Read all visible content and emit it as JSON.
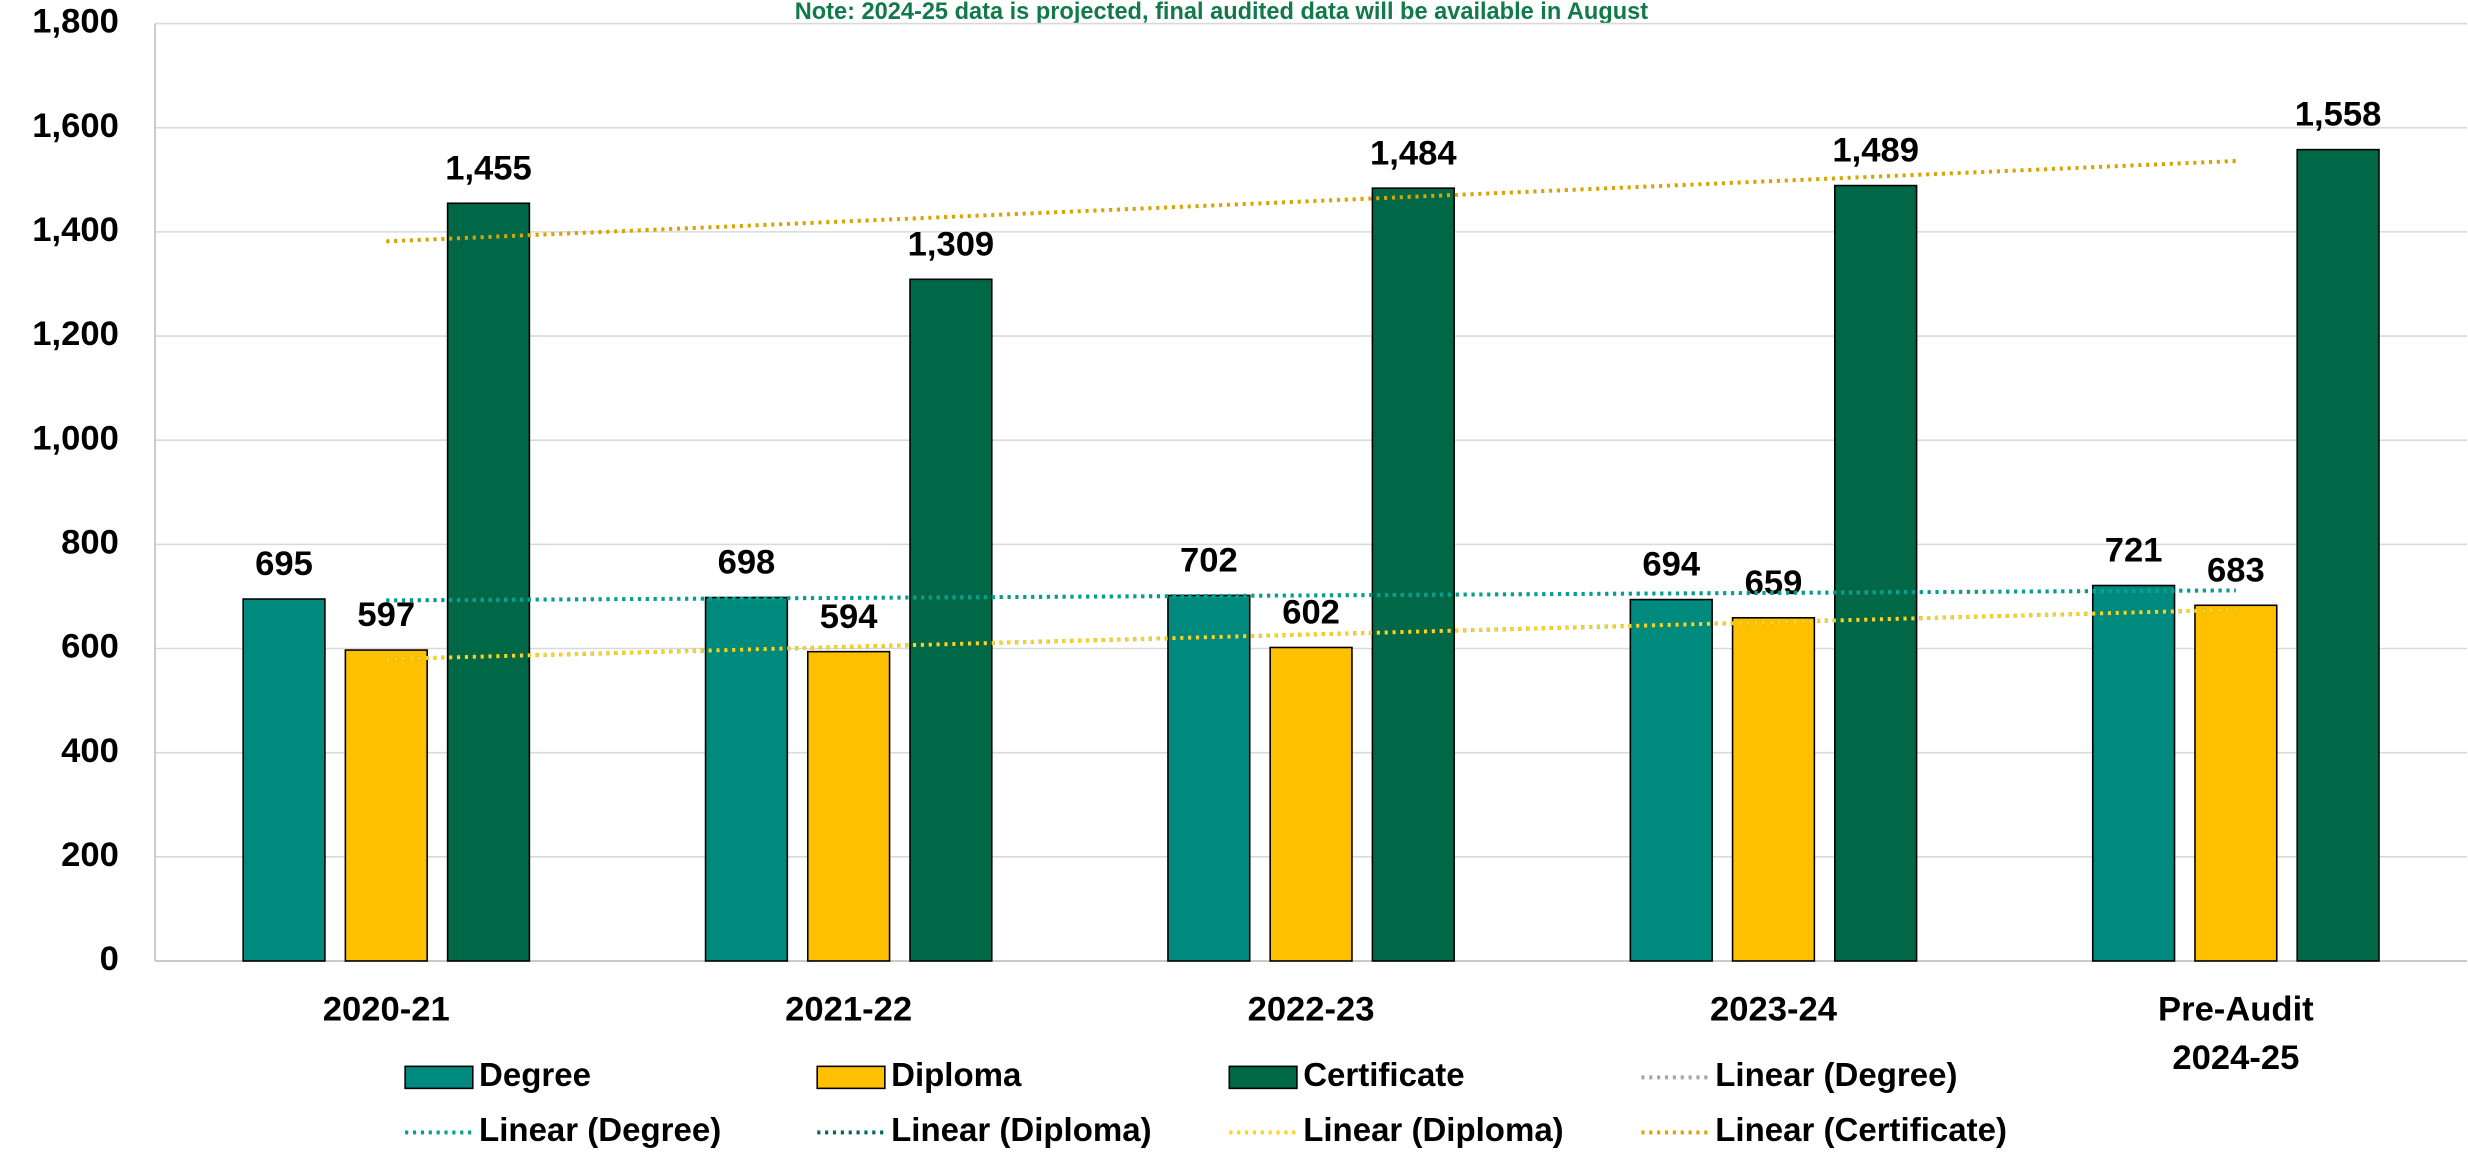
{
  "chart_data": {
    "type": "bar",
    "annotation": "Note: 2024-25 data is projected, final audited data will be available in August",
    "categories": [
      "2020-21",
      "2021-22",
      "2022-23",
      "2023-24",
      "Pre-Audit 2024-25"
    ],
    "series": [
      {
        "name": "Degree",
        "color": "#008a7e",
        "values": [
          695,
          698,
          702,
          694,
          721
        ],
        "value_labels": [
          "695",
          "698",
          "702",
          "694",
          "721"
        ]
      },
      {
        "name": "Diploma",
        "color": "#ffc000",
        "values": [
          597,
          594,
          602,
          659,
          683
        ],
        "value_labels": [
          "597",
          "594",
          "602",
          "659",
          "683"
        ]
      },
      {
        "name": "Certificate",
        "color": "#006747",
        "values": [
          1455,
          1309,
          1484,
          1489,
          1558
        ],
        "value_labels": [
          "1,455",
          "1,309",
          "1,484",
          "1,489",
          "1,558"
        ]
      }
    ],
    "trendlines": [
      {
        "name": "Linear (Degree)",
        "series": "Degree",
        "color": "#a6a6a6"
      },
      {
        "name": "Linear (Degree)",
        "series": "Degree",
        "color": "#00a090"
      },
      {
        "name": "Linear (Diploma)",
        "series": "Diploma",
        "color": "#00665e"
      },
      {
        "name": "Linear (Diploma)",
        "series": "Diploma",
        "color": "#ffd21a"
      },
      {
        "name": "Linear (Certificate)",
        "series": "Certificate",
        "color": "#d9a300"
      }
    ],
    "ylim": [
      0,
      1800
    ],
    "yticks": [
      0,
      200,
      400,
      600,
      800,
      {
        "value": 1000,
        "label": "1,000"
      },
      {
        "value": 1200,
        "label": "1,200"
      },
      {
        "value": 1400,
        "label": "1,400"
      },
      {
        "value": 1600,
        "label": "1,600"
      },
      {
        "value": 1800,
        "label": "1,800"
      }
    ],
    "grid": true
  }
}
